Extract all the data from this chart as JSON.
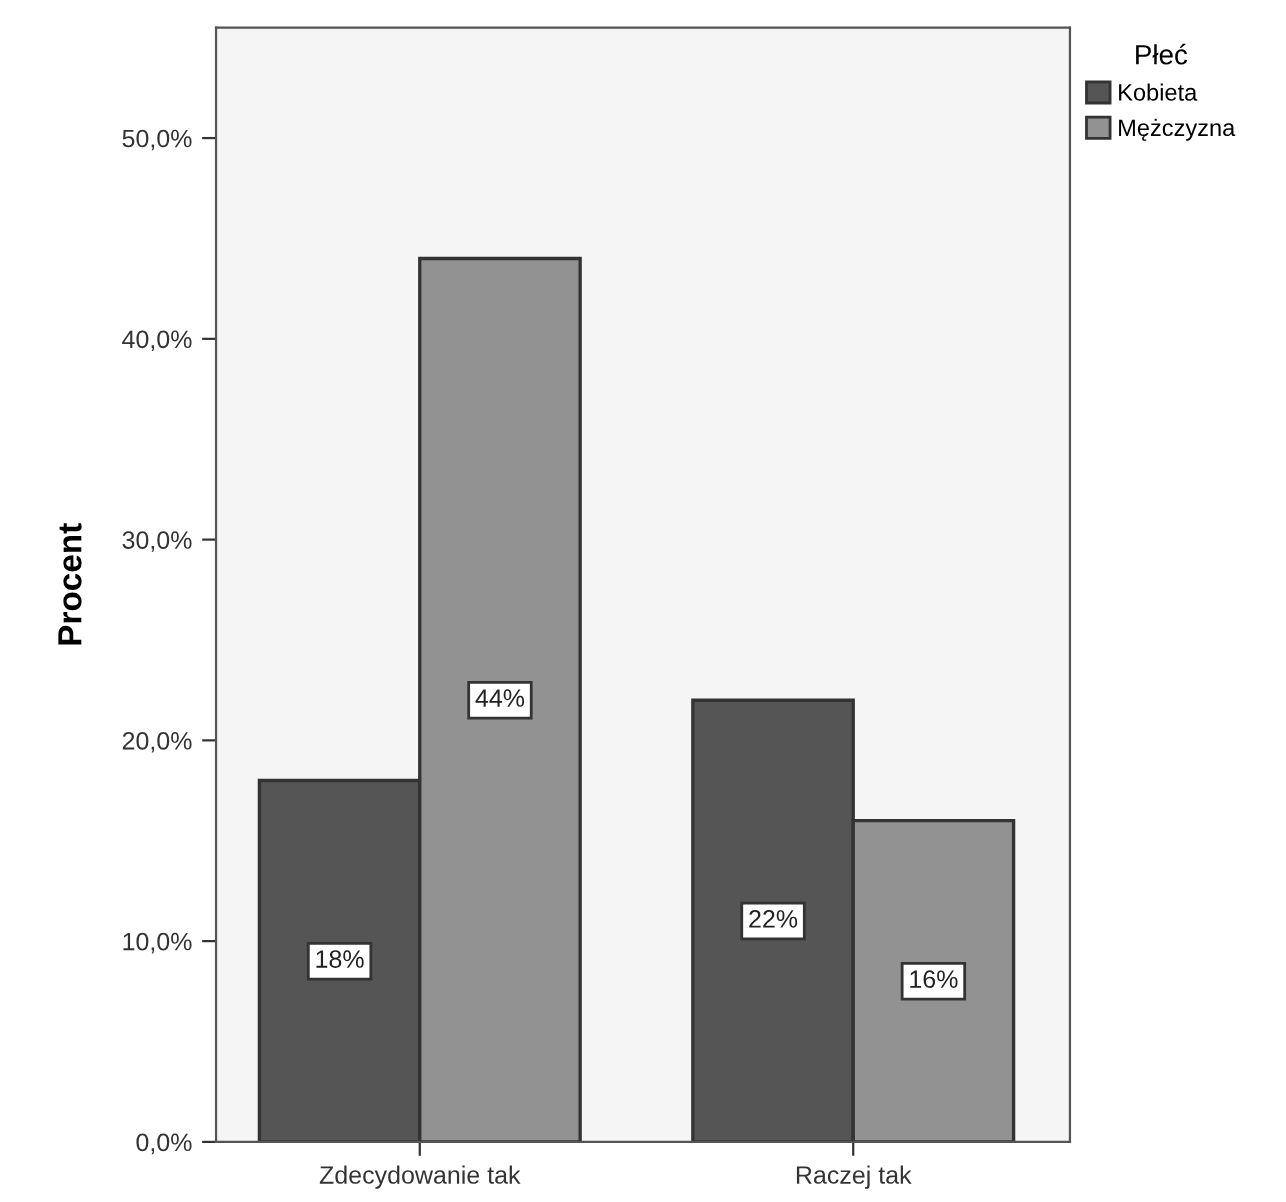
{
  "chart_data": {
    "type": "bar",
    "ylabel": "Procent",
    "legend_title": "Płeć",
    "categories": [
      "Zdecydowanie tak",
      "Raczej tak"
    ],
    "series": [
      {
        "name": "Kobieta",
        "color": "#555555",
        "values": [
          18,
          22
        ],
        "value_labels": [
          "18%",
          "22%"
        ]
      },
      {
        "name": "Mężczyzna",
        "color": "#929292",
        "values": [
          44,
          16
        ],
        "value_labels": [
          "44%",
          "16%"
        ]
      }
    ],
    "ylim": [
      0,
      55.5
    ],
    "yticks": [
      {
        "value": 0,
        "label": "0,0%"
      },
      {
        "value": 10,
        "label": "10,0%"
      },
      {
        "value": 20,
        "label": "20,0%"
      },
      {
        "value": 30,
        "label": "30,0%"
      },
      {
        "value": 40,
        "label": "40,0%"
      },
      {
        "value": 50,
        "label": "50,0%"
      }
    ],
    "grid": false,
    "legend": "top right"
  }
}
